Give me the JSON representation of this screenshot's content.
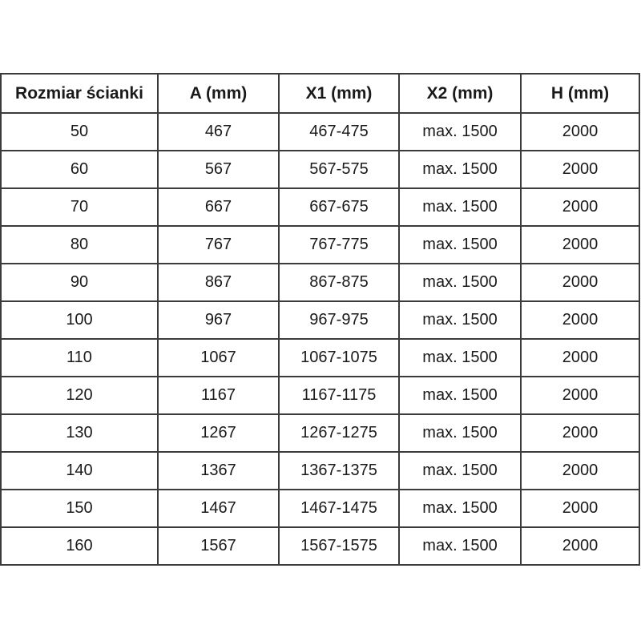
{
  "table": {
    "columns": [
      "Rozmiar ścianki",
      "A (mm)",
      "X1 (mm)",
      "X2 (mm)",
      "H (mm)"
    ],
    "rows": [
      [
        "50",
        "467",
        "467-475",
        "max. 1500",
        "2000"
      ],
      [
        "60",
        "567",
        "567-575",
        "max. 1500",
        "2000"
      ],
      [
        "70",
        "667",
        "667-675",
        "max. 1500",
        "2000"
      ],
      [
        "80",
        "767",
        "767-775",
        "max. 1500",
        "2000"
      ],
      [
        "90",
        "867",
        "867-875",
        "max. 1500",
        "2000"
      ],
      [
        "100",
        "967",
        "967-975",
        "max. 1500",
        "2000"
      ],
      [
        "110",
        "1067",
        "1067-1075",
        "max. 1500",
        "2000"
      ],
      [
        "120",
        "1167",
        "1167-1175",
        "max. 1500",
        "2000"
      ],
      [
        "130",
        "1267",
        "1267-1275",
        "max. 1500",
        "2000"
      ],
      [
        "140",
        "1367",
        "1367-1375",
        "max. 1500",
        "2000"
      ],
      [
        "150",
        "1467",
        "1467-1475",
        "max. 1500",
        "2000"
      ],
      [
        "160",
        "1567",
        "1567-1575",
        "max. 1500",
        "2000"
      ]
    ]
  },
  "colors": {
    "border": "#3b3b3b",
    "text": "#1a1a1a",
    "background": "#ffffff"
  },
  "chart_data": {
    "type": "table",
    "title": "",
    "columns": [
      "Rozmiar ścianki",
      "A (mm)",
      "X1 (mm)",
      "X2 (mm)",
      "H (mm)"
    ],
    "rows": [
      [
        "50",
        "467",
        "467-475",
        "max. 1500",
        "2000"
      ],
      [
        "60",
        "567",
        "567-575",
        "max. 1500",
        "2000"
      ],
      [
        "70",
        "667",
        "667-675",
        "max. 1500",
        "2000"
      ],
      [
        "80",
        "767",
        "767-775",
        "max. 1500",
        "2000"
      ],
      [
        "90",
        "867",
        "867-875",
        "max. 1500",
        "2000"
      ],
      [
        "100",
        "967",
        "967-975",
        "max. 1500",
        "2000"
      ],
      [
        "110",
        "1067",
        "1067-1075",
        "max. 1500",
        "2000"
      ],
      [
        "120",
        "1167",
        "1167-1175",
        "max. 1500",
        "2000"
      ],
      [
        "130",
        "1267",
        "1267-1275",
        "max. 1500",
        "2000"
      ],
      [
        "140",
        "1367",
        "1367-1375",
        "max. 1500",
        "2000"
      ],
      [
        "150",
        "1467",
        "1467-1475",
        "max. 1500",
        "2000"
      ],
      [
        "160",
        "1567",
        "1567-1575",
        "max. 1500",
        "2000"
      ]
    ]
  }
}
